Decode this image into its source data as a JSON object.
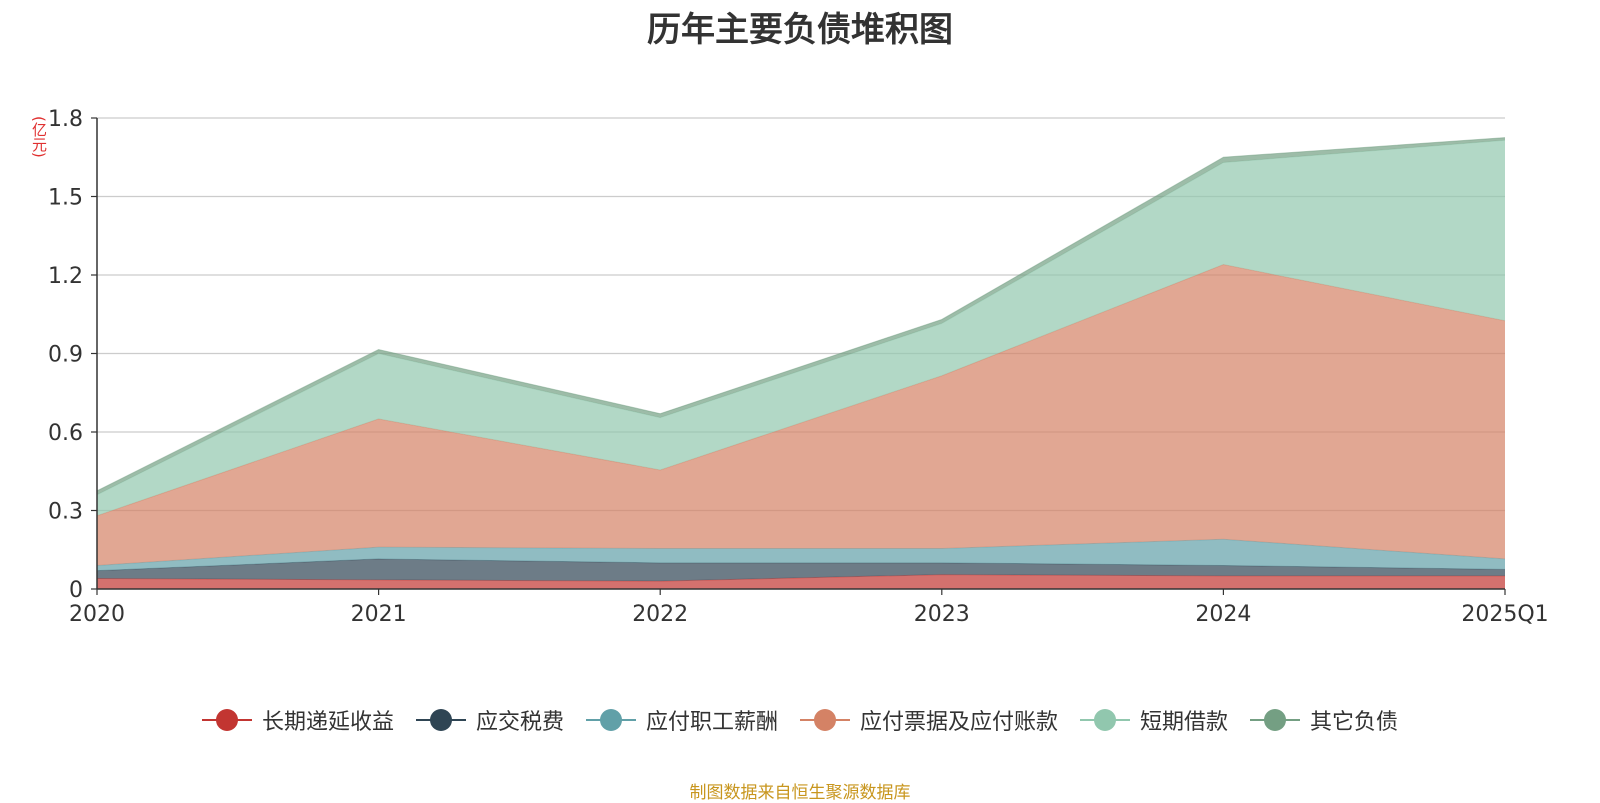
{
  "chart_data": {
    "type": "area",
    "stacked": true,
    "title": "历年主要负债堆积图",
    "y_unit": "(亿元)",
    "categories": [
      "2020",
      "2021",
      "2022",
      "2023",
      "2024",
      "2025Q1"
    ],
    "ylim": [
      0,
      1.8
    ],
    "yticks": [
      0,
      0.3,
      0.6,
      0.9,
      1.2,
      1.5,
      1.8
    ],
    "ytick_labels": [
      "0",
      "0.3",
      "0.6",
      "0.9",
      "1.2",
      "1.5",
      "1.8"
    ],
    "grid": true,
    "legend_position": "bottom",
    "series": [
      {
        "name": "长期递延收益",
        "color": "#c23531",
        "values": [
          0.04,
          0.035,
          0.03,
          0.055,
          0.05,
          0.05
        ]
      },
      {
        "name": "应交税费",
        "color": "#2f4554",
        "values": [
          0.03,
          0.08,
          0.07,
          0.045,
          0.04,
          0.025
        ]
      },
      {
        "name": "应付职工薪酬",
        "color": "#61a0a8",
        "values": [
          0.02,
          0.045,
          0.055,
          0.055,
          0.1,
          0.04
        ]
      },
      {
        "name": "应付票据及应付账款",
        "color": "#d48265",
        "values": [
          0.19,
          0.49,
          0.3,
          0.66,
          1.05,
          0.91
        ]
      },
      {
        "name": "短期借款",
        "color": "#91c7ae",
        "values": [
          0.08,
          0.25,
          0.2,
          0.2,
          0.39,
          0.69
        ]
      },
      {
        "name": "其它负债",
        "color": "#749f83",
        "values": [
          0.015,
          0.015,
          0.015,
          0.015,
          0.02,
          0.01
        ]
      }
    ]
  },
  "footer": {
    "source": "制图数据来自恒生聚源数据库"
  }
}
